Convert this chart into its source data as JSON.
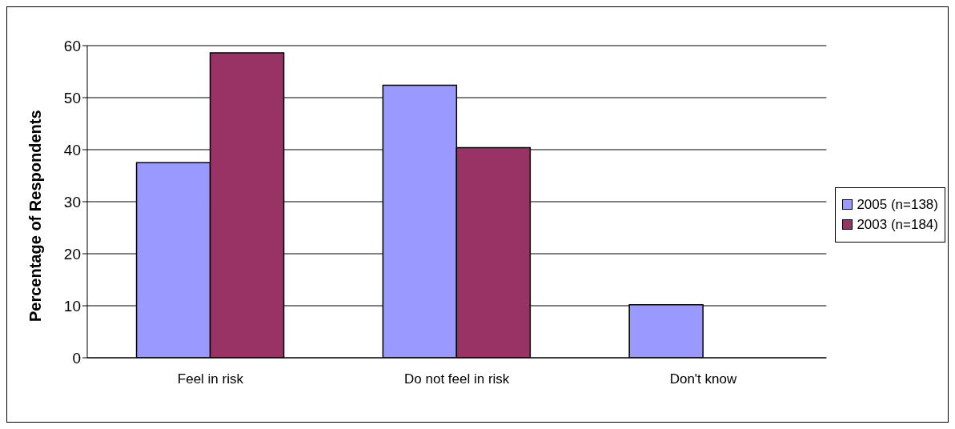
{
  "chart_data": {
    "type": "bar",
    "ylabel": "Percentage of Respondents",
    "categories": [
      "Feel in risk",
      "Do not feel in risk",
      "Don't know"
    ],
    "series": [
      {
        "name": "2005 (n=138)",
        "color": "#9999ff",
        "values": [
          37.5,
          52.4,
          10.2
        ]
      },
      {
        "name": "2003 (n=184)",
        "color": "#993366",
        "values": [
          58.6,
          40.4,
          0
        ]
      }
    ],
    "ylim": [
      0,
      60
    ],
    "yticks": [
      0,
      10,
      20,
      30,
      40,
      50,
      60
    ],
    "grid": "y",
    "legend": "right"
  }
}
